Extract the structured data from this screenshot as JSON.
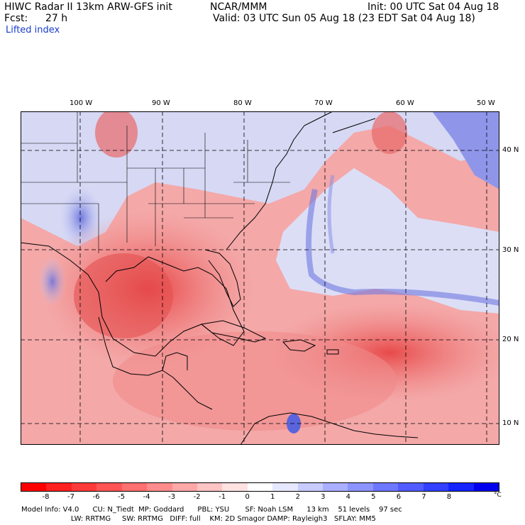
{
  "header": {
    "title_line": "HIWC Radar II 13km ARW-GFS init",
    "org": "NCAR/MMM",
    "init": "Init: 00 UTC Sat 04 Aug 18",
    "fcst_label": "Fcst:",
    "fcst_value": "27 h",
    "valid": "Valid: 03 UTC Sun 05 Aug 18 (23 EDT Sat 04 Aug 18)",
    "field": "Lifted index"
  },
  "map": {
    "lon_labels": [
      "100 W",
      "90 W",
      "80 W",
      "70 W",
      "60 W",
      "50 W"
    ],
    "lat_labels": [
      "40 N",
      "30 N",
      "20 N",
      "10 N"
    ],
    "colors": {
      "strong_unstable": "#e83a3a",
      "unstable": "#f08080",
      "neutral_red": "#f8c8c8",
      "neutral_blue": "#d0d4f4",
      "stable": "#6470e0",
      "land_line": "#000000"
    }
  },
  "colorbar": {
    "ticks": [
      "-8",
      "-7",
      "-6",
      "-5",
      "-4",
      "-3",
      "-2",
      "-1",
      "0",
      "1",
      "2",
      "3",
      "4",
      "5",
      "6",
      "7",
      "8"
    ],
    "unit": "°C",
    "colors": [
      "#ff0000",
      "#ff2020",
      "#ff3a3a",
      "#ff5555",
      "#ff7070",
      "#ff8c8c",
      "#ffa8a8",
      "#ffc4c4",
      "#ffe2e2",
      "#ffffff",
      "#e6e8ff",
      "#c8ccff",
      "#aab0ff",
      "#8c94ff",
      "#6e78ff",
      "#505cff",
      "#3240ff",
      "#1424ff",
      "#0000ee"
    ]
  },
  "footer": {
    "line1": "Model Info: V4.0      CU: N_Tiedt  MP: Goddard      PBL: YSU       SF: Noah LSM      13 km    51 levels    97 sec",
    "line2": "                      LW: RRTMG     SW: RRTMG   DIFF: full    KM: 2D Smagor DAMP: Rayleigh3   SFLAY: MM5"
  }
}
